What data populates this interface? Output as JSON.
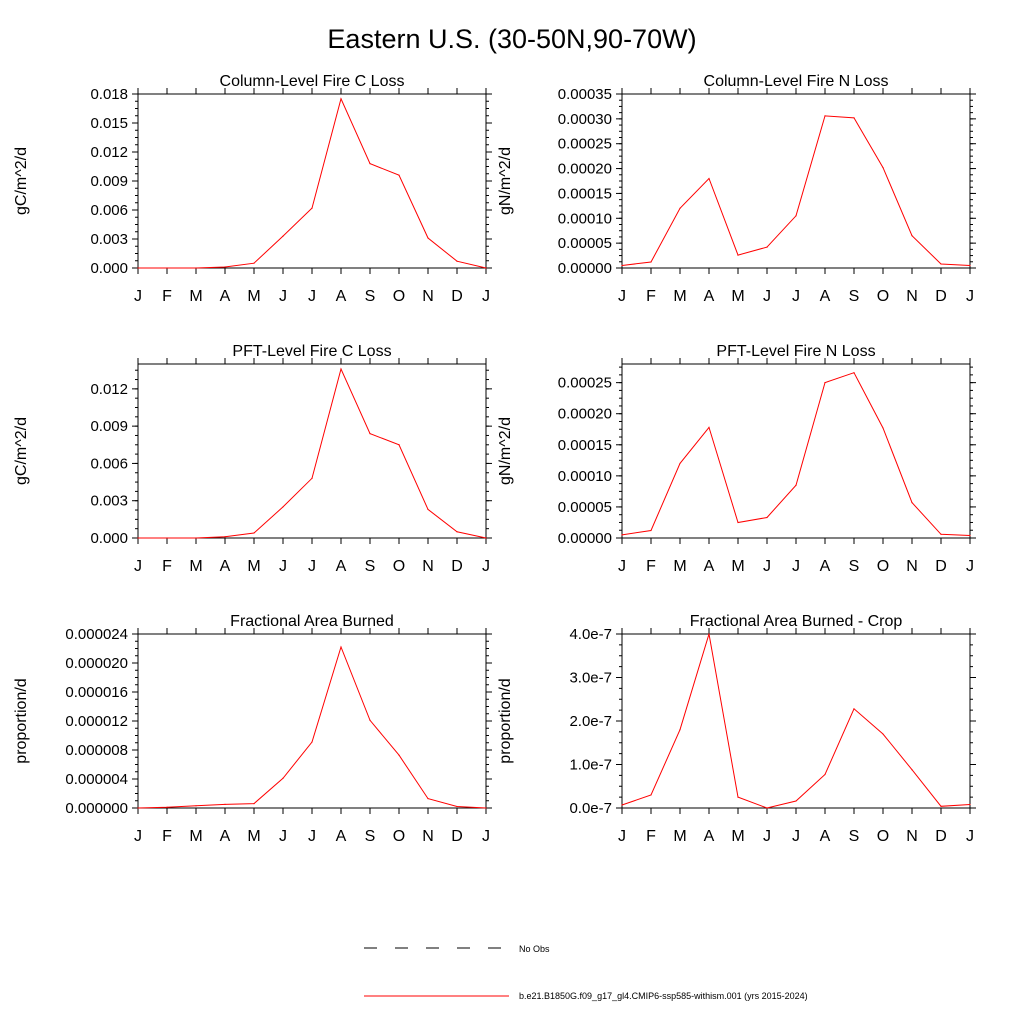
{
  "page": {
    "title": "Eastern U.S. (30-50N,90-70W)"
  },
  "legend": {
    "items": [
      {
        "label": "No Obs",
        "color": "#000000",
        "style": "dashed"
      },
      {
        "label": "b.e21.B1850G.f09_g17_gl4.CMIP6-ssp585-withism.001 (yrs 2015-2024)",
        "color": "#ff0000",
        "style": "solid"
      }
    ]
  },
  "chart_data": [
    {
      "type": "line",
      "title": "Column-Level Fire C Loss",
      "ylabel": "gC/m^2/d",
      "categories": [
        "J",
        "F",
        "M",
        "A",
        "M",
        "J",
        "J",
        "A",
        "S",
        "O",
        "N",
        "D",
        "J"
      ],
      "ylim": [
        0,
        0.018
      ],
      "yticks": [
        "0.000",
        "0.003",
        "0.006",
        "0.009",
        "0.012",
        "0.015",
        "0.018"
      ],
      "series": [
        {
          "color": "#ff0000",
          "values": [
            0.0,
            0.0,
            0.0,
            0.0001,
            0.0005,
            0.0033,
            0.0062,
            0.0175,
            0.0108,
            0.0096,
            0.0031,
            0.0007,
            0.0
          ]
        }
      ]
    },
    {
      "type": "line",
      "title": "Column-Level Fire N Loss",
      "ylabel": "gN/m^2/d",
      "categories": [
        "J",
        "F",
        "M",
        "A",
        "M",
        "J",
        "J",
        "A",
        "S",
        "O",
        "N",
        "D",
        "J"
      ],
      "ylim": [
        0,
        0.00035
      ],
      "yticks": [
        "0.00000",
        "0.00005",
        "0.00010",
        "0.00015",
        "0.00020",
        "0.00025",
        "0.00030",
        "0.00035"
      ],
      "series": [
        {
          "color": "#ff0000",
          "values": [
            5e-06,
            1.2e-05,
            0.00012,
            0.00018,
            2.6e-05,
            4.2e-05,
            0.000105,
            0.000306,
            0.000302,
            0.000202,
            6.5e-05,
            8e-06,
            5e-06
          ]
        }
      ]
    },
    {
      "type": "line",
      "title": "PFT-Level Fire C Loss",
      "ylabel": "gC/m^2/d",
      "categories": [
        "J",
        "F",
        "M",
        "A",
        "M",
        "J",
        "J",
        "A",
        "S",
        "O",
        "N",
        "D",
        "J"
      ],
      "ylim": [
        0,
        0.014
      ],
      "yticks": [
        "0.000",
        "0.003",
        "0.006",
        "0.009",
        "0.012"
      ],
      "series": [
        {
          "color": "#ff0000",
          "values": [
            0.0,
            0.0,
            0.0,
            0.0001,
            0.0004,
            0.0025,
            0.0048,
            0.0136,
            0.0084,
            0.0075,
            0.0023,
            0.0005,
            0.0
          ]
        }
      ]
    },
    {
      "type": "line",
      "title": "PFT-Level Fire N Loss",
      "ylabel": "gN/m^2/d",
      "categories": [
        "J",
        "F",
        "M",
        "A",
        "M",
        "J",
        "J",
        "A",
        "S",
        "O",
        "N",
        "D",
        "J"
      ],
      "ylim": [
        0,
        0.00028
      ],
      "yticks": [
        "0.00000",
        "0.00005",
        "0.00010",
        "0.00015",
        "0.00020",
        "0.00025"
      ],
      "series": [
        {
          "color": "#ff0000",
          "values": [
            5e-06,
            1.2e-05,
            0.00012,
            0.000178,
            2.5e-05,
            3.3e-05,
            8.5e-05,
            0.00025,
            0.000266,
            0.000177,
            5.7e-05,
            6e-06,
            4e-06
          ]
        }
      ]
    },
    {
      "type": "line",
      "title": "Fractional Area Burned",
      "ylabel": "proportion/d",
      "categories": [
        "J",
        "F",
        "M",
        "A",
        "M",
        "J",
        "J",
        "A",
        "S",
        "O",
        "N",
        "D",
        "J"
      ],
      "ylim": [
        0,
        2.4e-05
      ],
      "yticks": [
        "0.000000",
        "0.000004",
        "0.000008",
        "0.000012",
        "0.000016",
        "0.000020",
        "0.000024"
      ],
      "series": [
        {
          "color": "#ff0000",
          "values": [
            0.0,
            1e-07,
            3e-07,
            5e-07,
            6e-07,
            4.1e-06,
            9.1e-06,
            2.22e-05,
            1.21e-05,
            7.3e-06,
            1.3e-06,
            2e-07,
            0.0
          ]
        }
      ]
    },
    {
      "type": "line",
      "title": "Fractional Area Burned - Crop",
      "ylabel": "proportion/d",
      "categories": [
        "J",
        "F",
        "M",
        "A",
        "M",
        "J",
        "J",
        "A",
        "S",
        "O",
        "N",
        "D",
        "J"
      ],
      "ylim": [
        0,
        4e-07
      ],
      "yticks": [
        "0.0e-7",
        "1.0e-7",
        "2.0e-7",
        "3.0e-7",
        "4.0e-7"
      ],
      "series": [
        {
          "color": "#ff0000",
          "values": [
            7e-09,
            3e-08,
            1.8e-07,
            4e-07,
            2.5e-08,
            0.0,
            1.6e-08,
            7.7e-08,
            2.28e-07,
            1.7e-07,
            8.8e-08,
            4e-09,
            8e-09
          ]
        }
      ]
    }
  ]
}
